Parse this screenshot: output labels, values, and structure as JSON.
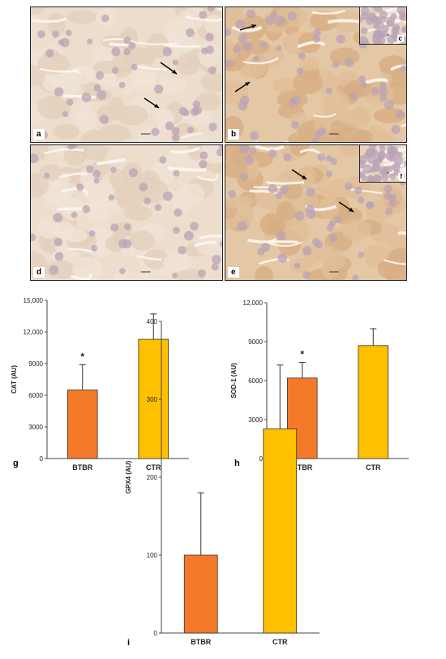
{
  "micrographs": [
    {
      "label": "a",
      "inset_label": null
    },
    {
      "label": "b",
      "inset_label": "c"
    },
    {
      "label": "d",
      "inset_label": null
    },
    {
      "label": "e",
      "inset_label": "f"
    }
  ],
  "colors": {
    "btbr": "#F47A2A",
    "ctr": "#FFC000",
    "tissue_bg": "#ECDDCC",
    "nucleus": "#B9A3B5",
    "stain_dark": "#C89A6E"
  },
  "chart_data": [
    {
      "type": "bar",
      "panel_label": "g",
      "ylabel": "CAT (AU)",
      "categories": [
        "BTBR",
        "CTR"
      ],
      "values": [
        6500,
        11300
      ],
      "errors": [
        2400,
        2400
      ],
      "significance": [
        "*",
        ""
      ],
      "ylim": [
        0,
        15000
      ],
      "yticks": [
        0,
        3000,
        6000,
        9000,
        12000,
        15000
      ],
      "ytick_labels": [
        "0",
        "3000",
        "6000",
        "9000",
        "12,000",
        "15,000"
      ],
      "grid": false
    },
    {
      "type": "bar",
      "panel_label": "h",
      "ylabel": "SOD-1 (AU)",
      "categories": [
        "BTBR",
        "CTR"
      ],
      "values": [
        6200,
        8700
      ],
      "errors": [
        1200,
        1300
      ],
      "significance": [
        "*",
        ""
      ],
      "ylim": [
        0,
        12000
      ],
      "yticks": [
        0,
        3000,
        6000,
        9000,
        12000
      ],
      "ytick_labels": [
        "0",
        "3000",
        "6000",
        "9000",
        "12,000"
      ],
      "grid": false
    },
    {
      "type": "bar",
      "panel_label": "i",
      "ylabel": "GPX4 (AU)",
      "categories": [
        "BTBR",
        "CTR"
      ],
      "values": [
        100,
        262
      ],
      "errors": [
        80,
        82
      ],
      "significance": [
        "",
        ""
      ],
      "ylim": [
        0,
        400
      ],
      "yticks": [
        0,
        100,
        200,
        300,
        400
      ],
      "ytick_labels": [
        "0",
        "100",
        "200",
        "300",
        "400"
      ],
      "grid": false
    }
  ]
}
